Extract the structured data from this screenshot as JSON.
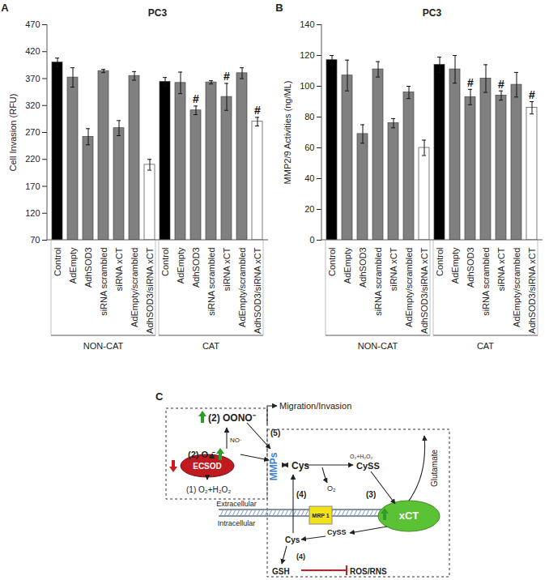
{
  "chart_data": [
    {
      "type": "bar",
      "panel": "A",
      "title": "PC3",
      "y_label": "Cell Invasion (RFU)",
      "categories": [
        "Control",
        "AdEmpty",
        "AdhSOD3",
        "siRNA scrambled",
        "siRNA xCT",
        "AdEmpty/scrambled",
        "AdhSOD3/siRNA xCT",
        "Control",
        "AdEmpty",
        "AdhSOD3",
        "siRNA scrambled",
        "siRNA xCT",
        "AdEmpty/scrambled",
        "AdhSOD3/siRNA xCT"
      ],
      "groups": [
        "NON-CAT",
        "NON-CAT",
        "NON-CAT",
        "NON-CAT",
        "NON-CAT",
        "NON-CAT",
        "NON-CAT",
        "CAT",
        "CAT",
        "CAT",
        "CAT",
        "CAT",
        "CAT",
        "CAT"
      ],
      "values": [
        400,
        372,
        262,
        384,
        278,
        375,
        210,
        364,
        362,
        311,
        363,
        336,
        380,
        290
      ],
      "errors": [
        8,
        18,
        15,
        3,
        14,
        8,
        10,
        8,
        20,
        8,
        3,
        25,
        10,
        8
      ],
      "annotations": [
        null,
        null,
        null,
        null,
        null,
        null,
        null,
        null,
        null,
        "#",
        null,
        "#",
        null,
        "#"
      ],
      "colors": [
        "#000000",
        "#808080",
        "#808080",
        "#808080",
        "#808080",
        "#808080",
        "#ffffff",
        "#000000",
        "#808080",
        "#808080",
        "#808080",
        "#808080",
        "#808080",
        "#ffffff"
      ],
      "ylim": [
        70,
        470
      ],
      "yticks": [
        70,
        120,
        170,
        220,
        270,
        320,
        370,
        420,
        470
      ]
    },
    {
      "type": "bar",
      "panel": "B",
      "title": "PC3",
      "y_label": "MMP2/9 Activities (ng/ML)",
      "categories": [
        "Control",
        "AdEmpty",
        "AdhSOD3",
        "siRNA scrambled",
        "siRNA xCT",
        "AdEmpty/scrambled",
        "AdhSOD3/siRNA xCT",
        "Control",
        "AdEmpty",
        "AdhSOD3",
        "siRNA scrambled",
        "siRNA xCT",
        "AdEmpty/scrambled",
        "AdhSOD3/siRNA xCT"
      ],
      "groups": [
        "NON-CAT",
        "NON-CAT",
        "NON-CAT",
        "NON-CAT",
        "NON-CAT",
        "NON-CAT",
        "NON-CAT",
        "CAT",
        "CAT",
        "CAT",
        "CAT",
        "CAT",
        "CAT",
        "CAT"
      ],
      "values": [
        117,
        107,
        69,
        111,
        76,
        96,
        60,
        114,
        111,
        93,
        105,
        94,
        101,
        86
      ],
      "errors": [
        3,
        10,
        6,
        5,
        3,
        4,
        5,
        5,
        9,
        5,
        9,
        3,
        8,
        4
      ],
      "annotations": [
        null,
        null,
        null,
        null,
        null,
        null,
        null,
        null,
        null,
        "#",
        null,
        "#",
        null,
        "#"
      ],
      "colors": [
        "#000000",
        "#808080",
        "#808080",
        "#808080",
        "#808080",
        "#808080",
        "#ffffff",
        "#000000",
        "#808080",
        "#808080",
        "#808080",
        "#808080",
        "#808080",
        "#ffffff"
      ],
      "ylim": [
        0,
        140
      ],
      "yticks": [
        0,
        20,
        40,
        60,
        80,
        100,
        120,
        140
      ]
    }
  ],
  "diagram": {
    "panel": "C",
    "labels": [
      "C",
      "(2) OONO⁻",
      "Migration/Invasion",
      "(5)",
      "NO·",
      "(2) O₂⁻",
      "ECSOD",
      "(1) O₂+H₂O₂",
      "MMPs",
      "Cys",
      "CySS",
      "O₂+H₂O₂",
      "O₂",
      "Glutamate",
      "(3)",
      "(4)",
      "xCT",
      "MRP 1",
      "Extracellular",
      "Intracellular",
      "CySS",
      "Cys",
      "(4)",
      "GSH",
      "ROS/RNS"
    ]
  }
}
